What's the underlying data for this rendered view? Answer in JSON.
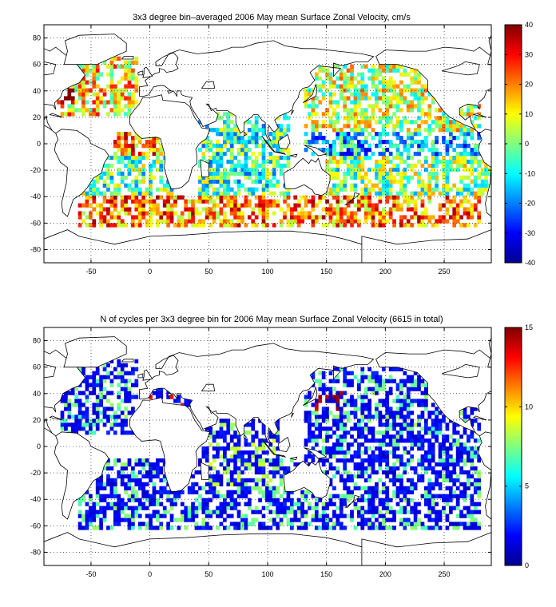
{
  "colormap": "jet",
  "charts": [
    {
      "title": "3x3 degree bin–averaged 2006 May mean Surface Zonal Velocity, cm/s",
      "x_ticks": [
        "-50",
        "0",
        "50",
        "100",
        "150",
        "200",
        "250"
      ],
      "y_ticks": [
        "80",
        "60",
        "40",
        "20",
        "0",
        "-20",
        "-40",
        "-60",
        "-80"
      ],
      "colorbar_ticks": [
        "40",
        "30",
        "20",
        "10",
        "0",
        "-10",
        "-20",
        "-30",
        "-40"
      ]
    },
    {
      "title": "N of cycles per 3x3 degree bin for 2006 May mean Surface Zonal Velocity (6615 in total)",
      "x_ticks": [
        "-50",
        "0",
        "50",
        "100",
        "150",
        "200",
        "250"
      ],
      "y_ticks": [
        "80",
        "60",
        "40",
        "20",
        "0",
        "-20",
        "-40",
        "-60",
        "-80"
      ],
      "colorbar_ticks": [
        "15",
        "10",
        "5",
        "0"
      ]
    }
  ],
  "chart_data": [
    {
      "type": "heatmap",
      "title": "3x3 degree bin–averaged 2006 May mean Surface Zonal Velocity, cm/s",
      "xlabel": "",
      "ylabel": "",
      "xlim": [
        -90,
        290
      ],
      "ylim": [
        -90,
        90
      ],
      "bin_size_deg": 3,
      "x_ticks": [
        -50,
        0,
        50,
        100,
        150,
        200,
        250
      ],
      "y_ticks": [
        -80,
        -60,
        -40,
        -20,
        0,
        20,
        40,
        60,
        80
      ],
      "colorbar": {
        "min": -40,
        "max": 40,
        "ticks": [
          -40,
          -30,
          -20,
          -10,
          0,
          10,
          20,
          30,
          40
        ],
        "units": "cm/s"
      },
      "grid": true,
      "regions": [
        {
          "lon": [
            -75,
            -10
          ],
          "lat": [
            20,
            66
          ],
          "typical": 12
        },
        {
          "lon": [
            -80,
            -65
          ],
          "lat": [
            30,
            42
          ],
          "typical": 30
        },
        {
          "lon": [
            140,
            160
          ],
          "lat": [
            30,
            42
          ],
          "typical": 25
        },
        {
          "lon": [
            -30,
            10
          ],
          "lat": [
            -10,
            10
          ],
          "typical": 20
        },
        {
          "lon": [
            130,
            280
          ],
          "lat": [
            -8,
            10
          ],
          "typical": -15
        },
        {
          "lon": [
            -60,
            280
          ],
          "lat": [
            -62,
            -38
          ],
          "typical": 20
        },
        {
          "lon": [
            130,
            280
          ],
          "lat": [
            10,
            60
          ],
          "typical": 5
        },
        {
          "lon": [
            -60,
            20
          ],
          "lat": [
            -38,
            -10
          ],
          "typical": -3
        },
        {
          "lon": [
            40,
            120
          ],
          "lat": [
            -38,
            25
          ],
          "typical": -5
        },
        {
          "lon": [
            150,
            290
          ],
          "lat": [
            -38,
            -10
          ],
          "typical": 0
        }
      ]
    },
    {
      "type": "heatmap",
      "title": "N of cycles per 3x3 degree bin for 2006 May mean Surface Zonal Velocity (6615 in total)",
      "xlabel": "",
      "ylabel": "",
      "xlim": [
        -90,
        290
      ],
      "ylim": [
        -90,
        90
      ],
      "bin_size_deg": 3,
      "total_cycles": 6615,
      "x_ticks": [
        -50,
        0,
        50,
        100,
        150,
        200,
        250
      ],
      "y_ticks": [
        -80,
        -60,
        -40,
        -20,
        0,
        20,
        40,
        60,
        80
      ],
      "colorbar": {
        "min": 0,
        "max": 15,
        "ticks": [
          0,
          5,
          10,
          15
        ]
      },
      "grid": true,
      "regions": [
        {
          "lon": [
            -75,
            -10
          ],
          "lat": [
            10,
            66
          ],
          "typical": 2
        },
        {
          "lon": [
            -60,
            280
          ],
          "lat": [
            -62,
            -10
          ],
          "typical": 2
        },
        {
          "lon": [
            130,
            280
          ],
          "lat": [
            -10,
            60
          ],
          "typical": 2
        },
        {
          "lon": [
            140,
            165
          ],
          "lat": [
            28,
            42
          ],
          "typical": 9
        },
        {
          "lon": [
            0,
            40
          ],
          "lat": [
            30,
            45
          ],
          "typical": 8
        },
        {
          "lon": [
            40,
            110
          ],
          "lat": [
            -30,
            20
          ],
          "typical": 3
        }
      ]
    }
  ]
}
